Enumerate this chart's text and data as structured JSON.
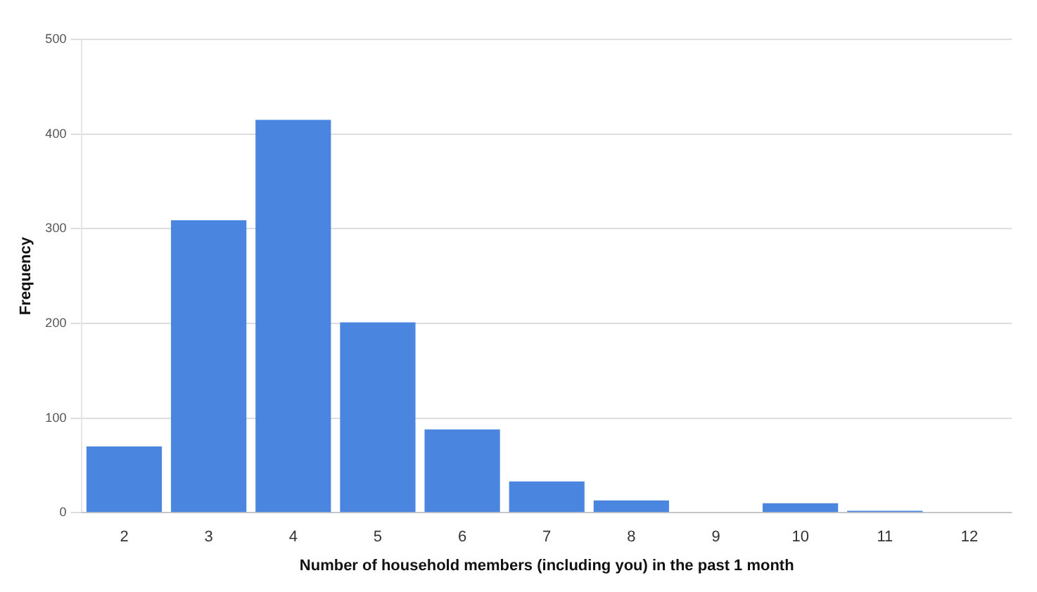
{
  "chart_data": {
    "type": "bar",
    "xlabel": "Number of household members (including you) in the past 1 month",
    "ylabel": "Frequency",
    "categories": [
      "2",
      "3",
      "4",
      "5",
      "6",
      "7",
      "8",
      "9",
      "10",
      "11",
      "12"
    ],
    "values": [
      70,
      309,
      415,
      201,
      88,
      33,
      13,
      null,
      10,
      2,
      null
    ],
    "color": "#4a86e0",
    "ylim": [
      0,
      500
    ],
    "yticks": [
      0,
      100,
      200,
      300,
      400,
      500
    ],
    "grid": "y"
  }
}
